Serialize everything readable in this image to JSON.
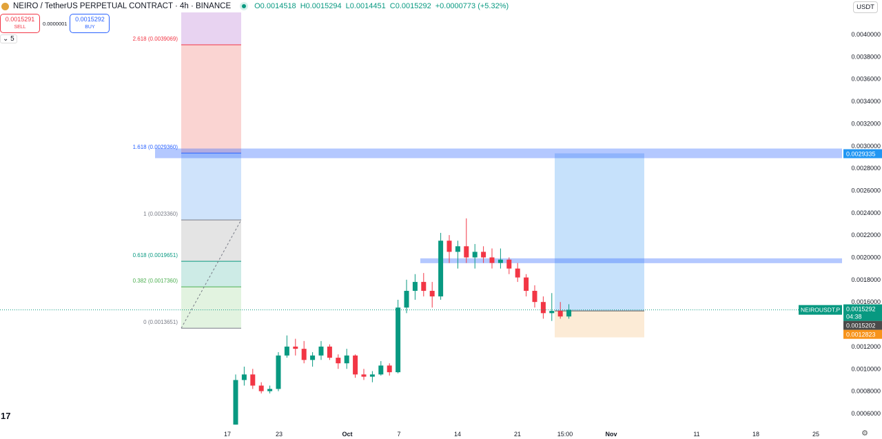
{
  "header": {
    "symbol": "NEIRO / TetherUS PERPETUAL CONTRACT · 4h · BINANCE",
    "open": "O0.0014518",
    "high": "H0.0015294",
    "low": "L0.0014451",
    "close": "C0.0015292",
    "change": "+0.0000773 (+5.32%)"
  },
  "trade": {
    "sell_price": "0.0015291",
    "sell_label": "SELL",
    "spread": "0.0000001",
    "buy_price": "0.0015292",
    "buy_label": "BUY"
  },
  "collapse_label": "5",
  "currency": "USDT",
  "colors": {
    "up": "#089981",
    "down": "#f23645",
    "band": "#2962ff"
  },
  "chart_data": {
    "type": "candlestick",
    "interval": "4h",
    "price_axis": {
      "ticks": [
        "0.0040000",
        "0.0038000",
        "0.0036000",
        "0.0034000",
        "0.0032000",
        "0.0030000",
        "0.0028000",
        "0.0026000",
        "0.0024000",
        "0.0022000",
        "0.0020000",
        "0.0018000",
        "0.0016000",
        "0.0012000",
        "0.0010000",
        "0.0008000",
        "0.0006000"
      ],
      "range": [
        0.0005,
        0.00435
      ]
    },
    "time_axis": {
      "ticks": [
        "17",
        "23",
        "Oct",
        "7",
        "14",
        "21",
        "15:00",
        "Nov",
        "11",
        "18",
        "25"
      ]
    },
    "candles_daily_ohlc": [
      [
        0.0005,
        0.00095,
        0.0005,
        0.0009
      ],
      [
        0.0009,
        0.00102,
        0.00085,
        0.00095
      ],
      [
        0.00095,
        0.001,
        0.00082,
        0.00085
      ],
      [
        0.00085,
        0.00088,
        0.00078,
        0.0008
      ],
      [
        0.0008,
        0.00085,
        0.00078,
        0.00082
      ],
      [
        0.00082,
        0.00115,
        0.0008,
        0.00112
      ],
      [
        0.00112,
        0.0013,
        0.0011,
        0.0012
      ],
      [
        0.0012,
        0.00127,
        0.00112,
        0.00118
      ],
      [
        0.00118,
        0.00125,
        0.00105,
        0.00108
      ],
      [
        0.00108,
        0.00115,
        0.00102,
        0.00112
      ],
      [
        0.00112,
        0.00125,
        0.00108,
        0.0012
      ],
      [
        0.0012,
        0.00122,
        0.00108,
        0.0011
      ],
      [
        0.0011,
        0.00113,
        0.001,
        0.00105
      ],
      [
        0.00105,
        0.00118,
        0.001,
        0.00112
      ],
      [
        0.00112,
        0.00113,
        0.00092,
        0.00095
      ],
      [
        0.00095,
        0.001,
        0.0009,
        0.00093
      ],
      [
        0.00093,
        0.00098,
        0.00088,
        0.00095
      ],
      [
        0.00095,
        0.00107,
        0.00094,
        0.00103
      ],
      [
        0.00103,
        0.00105,
        0.00094,
        0.00097
      ],
      [
        0.00097,
        0.00162,
        0.00096,
        0.00155
      ],
      [
        0.00155,
        0.0018,
        0.0015,
        0.0017
      ],
      [
        0.0017,
        0.00185,
        0.00162,
        0.00178
      ],
      [
        0.00178,
        0.00186,
        0.00165,
        0.0017
      ],
      [
        0.0017,
        0.00178,
        0.00155,
        0.00165
      ],
      [
        0.00165,
        0.00222,
        0.00162,
        0.00215
      ],
      [
        0.00215,
        0.0022,
        0.00195,
        0.00205
      ],
      [
        0.00205,
        0.00215,
        0.0019,
        0.0021
      ],
      [
        0.0021,
        0.00235,
        0.00195,
        0.002
      ],
      [
        0.002,
        0.00212,
        0.0019,
        0.00205
      ],
      [
        0.00205,
        0.0021,
        0.00195,
        0.002
      ],
      [
        0.002,
        0.00208,
        0.0019,
        0.00195
      ],
      [
        0.00195,
        0.00208,
        0.0019,
        0.00198
      ],
      [
        0.00198,
        0.002,
        0.00185,
        0.0019
      ],
      [
        0.0019,
        0.00195,
        0.00178,
        0.00182
      ],
      [
        0.00182,
        0.00185,
        0.00165,
        0.0017
      ],
      [
        0.0017,
        0.00175,
        0.00155,
        0.0016
      ],
      [
        0.0016,
        0.00165,
        0.00145,
        0.0015
      ],
      [
        0.0015,
        0.00168,
        0.00143,
        0.00152
      ],
      [
        0.00152,
        0.0016,
        0.00145,
        0.00147
      ],
      [
        0.00147,
        0.00158,
        0.00145,
        0.00153
      ]
    ],
    "fibonacci": [
      {
        "label": "2.618 (0.0039069)",
        "price": 0.0039069,
        "color": "#f23645"
      },
      {
        "label": "1.618 (0.0029360)",
        "price": 0.002936,
        "color": "#2962ff"
      },
      {
        "label": "1 (0.0023360)",
        "price": 0.002336,
        "color": "#787b86"
      },
      {
        "label": "0.618 (0.0019651)",
        "price": 0.0019651,
        "color": "#089981"
      },
      {
        "label": "0.382 (0.0017360)",
        "price": 0.001736,
        "color": "#4caf50"
      },
      {
        "label": "0 (0.0013651)",
        "price": 0.0013651,
        "color": "#787b86"
      }
    ],
    "zones": [
      {
        "price": 0.0029335
      },
      {
        "price": 0.00197
      }
    ],
    "position": {
      "target": 0.0029335,
      "entry": 0.0015202,
      "stop": 0.0012823
    },
    "labels": {
      "zone_price": "0.0029335",
      "symbol_tag": "NEIROUSDT.P",
      "last_price": "0.0015292",
      "countdown": "04:38",
      "entry_price": "0.0015202",
      "stop_price": "0.0012823"
    }
  }
}
